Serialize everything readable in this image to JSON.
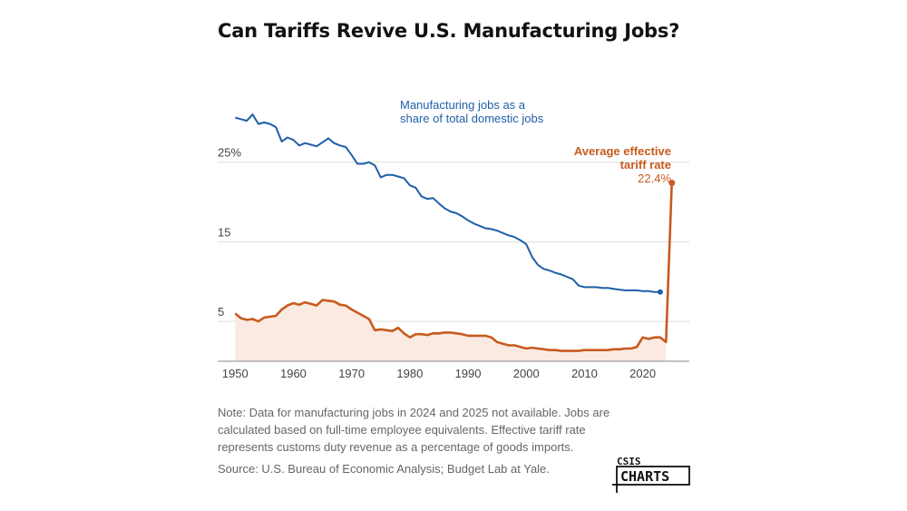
{
  "title": "Can Tariffs Revive U.S. Manufacturing Jobs?",
  "colors": {
    "jobs": "#1f5fa8",
    "tariff": "#c75b1e",
    "tariff_fill": "#fbeae2",
    "grid": "#dddddd",
    "axis_text": "#444444"
  },
  "annotations": {
    "jobs_line1": "Manufacturing jobs as a",
    "jobs_line2": "share of total domestic jobs",
    "tariff_line1": "Average effective",
    "tariff_line2": "tariff rate",
    "tariff_value": "22.4%"
  },
  "notes": {
    "note": "Note: Data for manufacturing jobs in 2024 and 2025 not available. Jobs are calculated based on full-time employee equivalents. Effective tariff rate represents customs duty revenue as a percentage of goods imports.",
    "source": "Source: U.S. Bureau of Economic Analysis; Budget Lab at Yale."
  },
  "logo": {
    "top": "CSIS",
    "bottom": "CHARTS"
  },
  "chart_data": {
    "type": "line",
    "title": "Can Tariffs Revive U.S. Manufacturing Jobs?",
    "xlabel": "",
    "ylabel": "",
    "xlim": [
      1947,
      2028
    ],
    "ylim": [
      0,
      35
    ],
    "x_ticks": [
      1950,
      1960,
      1970,
      1980,
      1990,
      2000,
      2010,
      2020
    ],
    "y_ticks": [
      {
        "value": 5,
        "label": "5"
      },
      {
        "value": 15,
        "label": "15"
      },
      {
        "value": 25,
        "label": "25%"
      }
    ],
    "grid": true,
    "series": [
      {
        "name": "Manufacturing jobs as a share of total domestic jobs",
        "x": [
          1950,
          1951,
          1952,
          1953,
          1954,
          1955,
          1956,
          1957,
          1958,
          1959,
          1960,
          1961,
          1962,
          1963,
          1964,
          1965,
          1966,
          1967,
          1968,
          1969,
          1970,
          1971,
          1972,
          1973,
          1974,
          1975,
          1976,
          1977,
          1978,
          1979,
          1980,
          1981,
          1982,
          1983,
          1984,
          1985,
          1986,
          1987,
          1988,
          1989,
          1990,
          1991,
          1992,
          1993,
          1994,
          1995,
          1996,
          1997,
          1998,
          1999,
          2000,
          2001,
          2002,
          2003,
          2004,
          2005,
          2006,
          2007,
          2008,
          2009,
          2010,
          2011,
          2012,
          2013,
          2014,
          2015,
          2016,
          2017,
          2018,
          2019,
          2020,
          2021,
          2022,
          2023
        ],
        "values": [
          30.6,
          30.4,
          30.2,
          31.0,
          29.8,
          30.0,
          29.8,
          29.4,
          27.6,
          28.1,
          27.8,
          27.1,
          27.4,
          27.2,
          27.0,
          27.5,
          28.0,
          27.4,
          27.1,
          26.9,
          25.9,
          24.8,
          24.8,
          25.0,
          24.6,
          23.1,
          23.4,
          23.4,
          23.2,
          23.0,
          22.1,
          21.8,
          20.7,
          20.4,
          20.5,
          19.8,
          19.2,
          18.8,
          18.6,
          18.2,
          17.7,
          17.3,
          17.0,
          16.7,
          16.6,
          16.4,
          16.1,
          15.8,
          15.6,
          15.2,
          14.7,
          13.1,
          12.1,
          11.6,
          11.4,
          11.1,
          10.9,
          10.6,
          10.3,
          9.5,
          9.3,
          9.3,
          9.3,
          9.2,
          9.2,
          9.1,
          9.0,
          8.9,
          8.9,
          8.9,
          8.8,
          8.8,
          8.7,
          8.7
        ]
      },
      {
        "name": "Average effective tariff rate",
        "x": [
          1950,
          1951,
          1952,
          1953,
          1954,
          1955,
          1956,
          1957,
          1958,
          1959,
          1960,
          1961,
          1962,
          1963,
          1964,
          1965,
          1966,
          1967,
          1968,
          1969,
          1970,
          1971,
          1972,
          1973,
          1974,
          1975,
          1976,
          1977,
          1978,
          1979,
          1980,
          1981,
          1982,
          1983,
          1984,
          1985,
          1986,
          1987,
          1988,
          1989,
          1990,
          1991,
          1992,
          1993,
          1994,
          1995,
          1996,
          1997,
          1998,
          1999,
          2000,
          2001,
          2002,
          2003,
          2004,
          2005,
          2006,
          2007,
          2008,
          2009,
          2010,
          2011,
          2012,
          2013,
          2014,
          2015,
          2016,
          2017,
          2018,
          2019,
          2020,
          2021,
          2022,
          2023,
          2024,
          2025
        ],
        "values": [
          6.0,
          5.4,
          5.2,
          5.3,
          5.0,
          5.5,
          5.6,
          5.7,
          6.5,
          7.0,
          7.3,
          7.1,
          7.4,
          7.2,
          7.0,
          7.7,
          7.6,
          7.5,
          7.1,
          7.0,
          6.5,
          6.1,
          5.7,
          5.3,
          3.9,
          4.0,
          3.9,
          3.8,
          4.2,
          3.5,
          3.0,
          3.4,
          3.4,
          3.3,
          3.5,
          3.5,
          3.6,
          3.6,
          3.5,
          3.4,
          3.2,
          3.2,
          3.2,
          3.2,
          3.0,
          2.4,
          2.2,
          2.0,
          2.0,
          1.8,
          1.6,
          1.7,
          1.6,
          1.5,
          1.4,
          1.4,
          1.3,
          1.3,
          1.3,
          1.3,
          1.4,
          1.4,
          1.4,
          1.4,
          1.4,
          1.5,
          1.5,
          1.6,
          1.6,
          1.8,
          3.0,
          2.8,
          3.0,
          3.0,
          2.4,
          22.4
        ]
      }
    ]
  }
}
